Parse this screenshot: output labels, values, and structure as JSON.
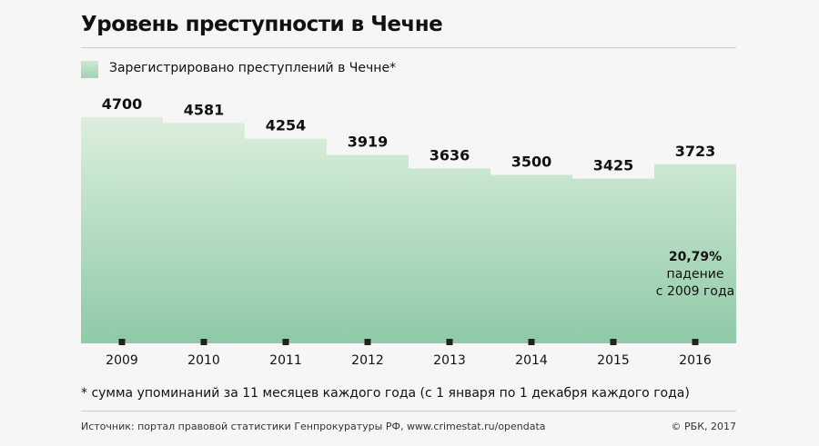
{
  "chart_data": {
    "type": "bar",
    "title": "Уровень преступности в Чечне",
    "legend": "Зарегистрировано преступлений в Чечне*",
    "categories": [
      "2009",
      "2010",
      "2011",
      "2012",
      "2013",
      "2014",
      "2015",
      "2016"
    ],
    "values": [
      4700,
      4581,
      4254,
      3919,
      3636,
      3500,
      3425,
      3723
    ],
    "ylim": [
      0,
      4700
    ],
    "annotation": {
      "value": "20,79%",
      "line1": "падение",
      "line2": "с 2009 года"
    },
    "footnote": "* сумма упоминаний за 11 месяцев каждого года (с 1 января по 1 декабря каждого года)",
    "colors": {
      "bar_top": "#dcefdc",
      "bar_bottom": "#8ecaa7"
    }
  },
  "source": "Источник: портал правовой статистики Генпрокуратуры РФ, www.crimestat.ru/opendata",
  "copyright": "© РБК, 2017"
}
